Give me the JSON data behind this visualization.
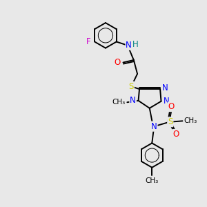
{
  "bg_color": "#e8e8e8",
  "bond_color": "#000000",
  "bond_width": 1.4,
  "atom_colors": {
    "C": "#000000",
    "N": "#0000ff",
    "O": "#ff0000",
    "S": "#cccc00",
    "F": "#cc00cc",
    "H": "#008080"
  },
  "font_size_atom": 8.5,
  "font_size_small": 7.5,
  "figsize": [
    3.0,
    3.0
  ],
  "dpi": 100,
  "xlim": [
    0,
    10
  ],
  "ylim": [
    0,
    10
  ]
}
